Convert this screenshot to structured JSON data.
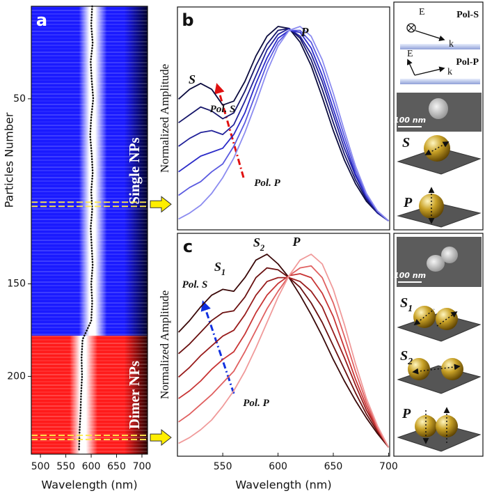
{
  "chart_data": [
    {
      "type": "heatmap",
      "panel": "a",
      "xlabel": "Wavelength (nm)",
      "ylabel": "Particles Number",
      "xlim": [
        482,
        711
      ],
      "xticks": [
        500,
        550,
        600,
        650,
        700
      ],
      "ylim": [
        0,
        242
      ],
      "yticks": [
        50,
        150,
        200
      ],
      "regions": [
        {
          "name": "Single NPs",
          "rows": [
            0,
            178
          ],
          "color": "#1a1aff"
        },
        {
          "name": "Dimer NPs",
          "rows": [
            178,
            242
          ],
          "color": "#ff1a1a"
        }
      ],
      "peak": {
        "particles": [
          0,
          10,
          20,
          30,
          40,
          50,
          60,
          70,
          80,
          90,
          100,
          110,
          120,
          130,
          140,
          150,
          160,
          170,
          180,
          190,
          200,
          210,
          220,
          230,
          240
        ],
        "wavelengths": [
          602,
          600,
          603,
          599,
          601,
          604,
          600,
          598,
          601,
          603,
          600,
          602,
          599,
          601,
          603,
          600,
          602,
          600,
          583,
          581,
          582,
          580,
          579,
          577,
          576
        ]
      },
      "marked_particles": [
        107,
        233
      ]
    },
    {
      "type": "line",
      "panel": "b",
      "ylabel": "Normalized Amplitude",
      "xlim": [
        509,
        701
      ],
      "ylim": [
        0,
        1
      ],
      "x": [
        510,
        520,
        530,
        540,
        550,
        560,
        570,
        580,
        590,
        600,
        610,
        620,
        630,
        640,
        650,
        660,
        670,
        680,
        690,
        700
      ],
      "series": [
        {
          "color": "#0b0b3e",
          "values": [
            0.63,
            0.68,
            0.71,
            0.68,
            0.6,
            0.62,
            0.72,
            0.85,
            0.95,
            1.0,
            0.99,
            0.92,
            0.8,
            0.64,
            0.47,
            0.32,
            0.2,
            0.11,
            0.05,
            0.01
          ]
        },
        {
          "color": "#16166a",
          "values": [
            0.51,
            0.55,
            0.59,
            0.57,
            0.53,
            0.56,
            0.67,
            0.8,
            0.91,
            0.98,
            0.99,
            0.94,
            0.83,
            0.68,
            0.51,
            0.35,
            0.22,
            0.12,
            0.05,
            0.01
          ]
        },
        {
          "color": "#22229a",
          "values": [
            0.39,
            0.43,
            0.46,
            0.47,
            0.45,
            0.5,
            0.62,
            0.75,
            0.88,
            0.96,
            0.99,
            0.95,
            0.86,
            0.72,
            0.55,
            0.38,
            0.24,
            0.13,
            0.05,
            0.01
          ]
        },
        {
          "color": "#2a2ac8",
          "values": [
            0.26,
            0.3,
            0.34,
            0.36,
            0.38,
            0.45,
            0.56,
            0.71,
            0.84,
            0.94,
            0.98,
            0.97,
            0.89,
            0.75,
            0.58,
            0.41,
            0.25,
            0.13,
            0.06,
            0.01
          ]
        },
        {
          "color": "#5a5ae0",
          "values": [
            0.14,
            0.18,
            0.21,
            0.26,
            0.3,
            0.39,
            0.51,
            0.66,
            0.81,
            0.92,
            0.98,
            0.98,
            0.92,
            0.79,
            0.62,
            0.44,
            0.27,
            0.14,
            0.06,
            0.01
          ]
        },
        {
          "color": "#8c8cf0",
          "values": [
            0.02,
            0.05,
            0.09,
            0.15,
            0.23,
            0.33,
            0.46,
            0.61,
            0.77,
            0.9,
            0.98,
            1.0,
            0.95,
            0.83,
            0.66,
            0.47,
            0.29,
            0.15,
            0.06,
            0.01
          ]
        }
      ],
      "annotations": [
        {
          "text": "S"
        },
        {
          "text": "P"
        },
        {
          "text": "Pol. S"
        },
        {
          "text": "Pol. P"
        }
      ]
    },
    {
      "type": "line",
      "panel": "c",
      "xlabel": "Wavelength (nm)",
      "ylabel": "Normalized Amplitude",
      "xlim": [
        509,
        701
      ],
      "ylim": [
        0,
        1
      ],
      "xticks": [
        550,
        600,
        650,
        700
      ],
      "x": [
        510,
        520,
        530,
        540,
        550,
        560,
        570,
        580,
        590,
        600,
        610,
        620,
        630,
        640,
        650,
        660,
        670,
        680,
        690,
        700
      ],
      "series": [
        {
          "color": "#3a0808",
          "values": [
            0.6,
            0.66,
            0.73,
            0.79,
            0.82,
            0.81,
            0.88,
            0.97,
            1.0,
            0.95,
            0.88,
            0.79,
            0.69,
            0.58,
            0.46,
            0.35,
            0.25,
            0.16,
            0.08,
            0.01
          ]
        },
        {
          "color": "#6a1010",
          "values": [
            0.49,
            0.54,
            0.6,
            0.66,
            0.7,
            0.71,
            0.78,
            0.88,
            0.93,
            0.92,
            0.88,
            0.83,
            0.75,
            0.65,
            0.53,
            0.41,
            0.29,
            0.18,
            0.09,
            0.01
          ]
        },
        {
          "color": "#991c1c",
          "values": [
            0.37,
            0.42,
            0.48,
            0.53,
            0.58,
            0.61,
            0.69,
            0.79,
            0.86,
            0.88,
            0.88,
            0.86,
            0.81,
            0.73,
            0.6,
            0.47,
            0.33,
            0.2,
            0.1,
            0.01
          ]
        },
        {
          "color": "#c83434",
          "values": [
            0.26,
            0.3,
            0.35,
            0.41,
            0.46,
            0.5,
            0.59,
            0.7,
            0.79,
            0.85,
            0.89,
            0.9,
            0.88,
            0.8,
            0.68,
            0.52,
            0.36,
            0.22,
            0.1,
            0.01
          ]
        },
        {
          "color": "#e06060",
          "values": [
            0.14,
            0.18,
            0.23,
            0.28,
            0.34,
            0.4,
            0.5,
            0.61,
            0.72,
            0.81,
            0.89,
            0.93,
            0.94,
            0.88,
            0.75,
            0.58,
            0.4,
            0.24,
            0.11,
            0.01
          ]
        },
        {
          "color": "#f09a9a",
          "values": [
            0.03,
            0.06,
            0.1,
            0.15,
            0.22,
            0.3,
            0.4,
            0.52,
            0.65,
            0.78,
            0.89,
            0.97,
            1.0,
            0.95,
            0.82,
            0.64,
            0.44,
            0.26,
            0.12,
            0.01
          ]
        }
      ],
      "annotations": [
        {
          "text": "S",
          "sub": "1"
        },
        {
          "text": "S",
          "sub": "2"
        },
        {
          "text": "P"
        },
        {
          "text": "Pol. S"
        },
        {
          "text": "Pol. P"
        }
      ]
    }
  ],
  "side_panels": {
    "top": {
      "pol_s": {
        "field": "E",
        "wave": "k",
        "label": "Pol-S"
      },
      "pol_p": {
        "field": "E",
        "wave": "k",
        "label": "Pol-P"
      },
      "scale_bar": "100 nm",
      "modes": [
        {
          "text": "S"
        },
        {
          "text": "P"
        }
      ]
    },
    "bottom": {
      "scale_bar": "100 nm",
      "modes": [
        {
          "text": "S",
          "sub": "1"
        },
        {
          "text": "S",
          "sub": "2"
        },
        {
          "text": "P"
        }
      ]
    }
  }
}
